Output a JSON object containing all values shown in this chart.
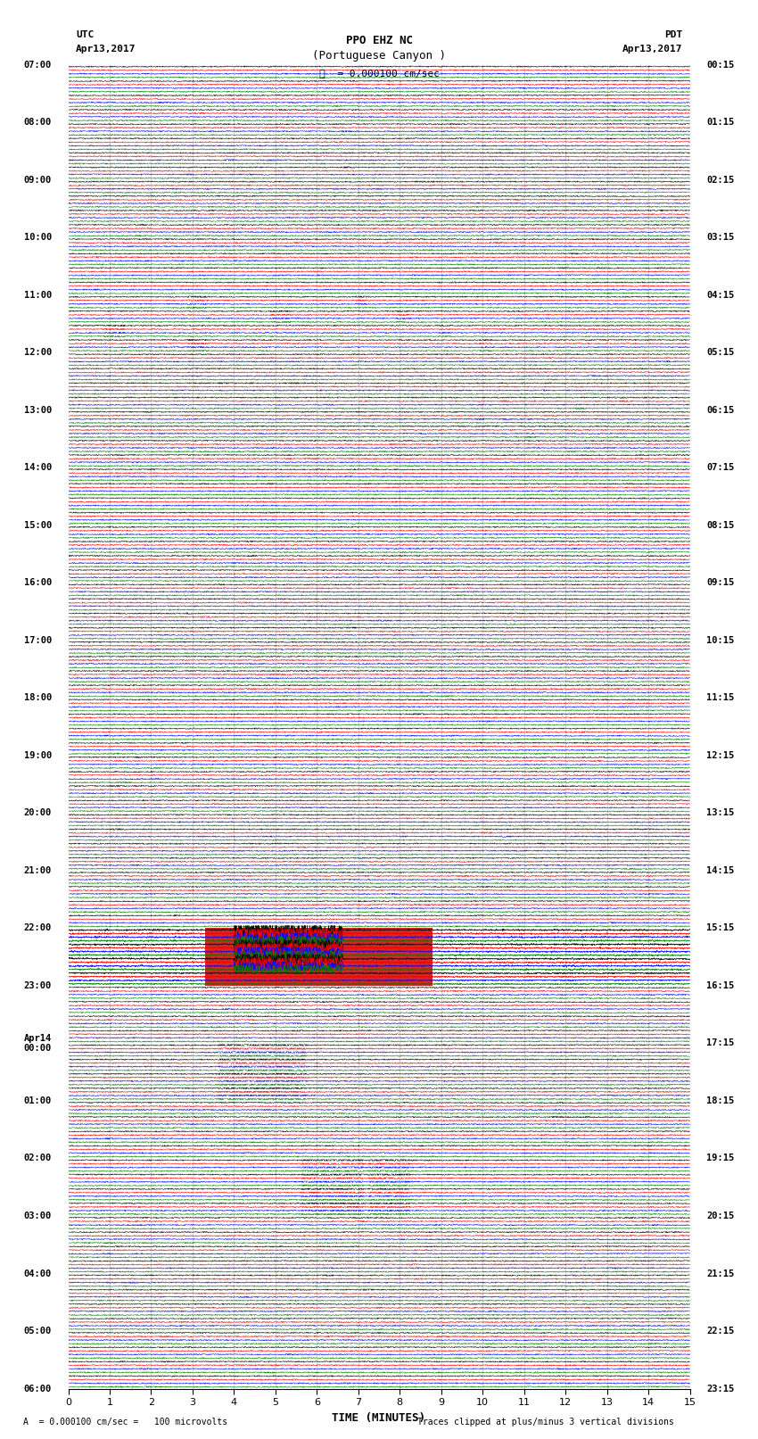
{
  "title_line1": "PPO EHZ NC",
  "title_line2": "(Portuguese Canyon )",
  "scale_label": "= 0.000100 cm/sec",
  "utc_label": "UTC",
  "pdt_label": "PDT",
  "date_left": "Apr13,2017",
  "date_right": "Apr13,2017",
  "xlabel": "TIME (MINUTES)",
  "footer_left": "A  = 0.000100 cm/sec =   100 microvolts",
  "footer_right": "Traces clipped at plus/minus 3 vertical divisions",
  "xlim": [
    0,
    15
  ],
  "xticks": [
    0,
    1,
    2,
    3,
    4,
    5,
    6,
    7,
    8,
    9,
    10,
    11,
    12,
    13,
    14,
    15
  ],
  "bg_color": "#ffffff",
  "trace_colors": [
    "#000000",
    "#ff0000",
    "#0000ff",
    "#008000"
  ],
  "fig_width": 8.5,
  "fig_height": 16.13,
  "num_rows": 92,
  "left_labels": [
    [
      "07:00",
      0
    ],
    [
      "08:00",
      4
    ],
    [
      "09:00",
      8
    ],
    [
      "10:00",
      12
    ],
    [
      "11:00",
      16
    ],
    [
      "12:00",
      20
    ],
    [
      "13:00",
      24
    ],
    [
      "14:00",
      28
    ],
    [
      "15:00",
      32
    ],
    [
      "16:00",
      36
    ],
    [
      "17:00",
      40
    ],
    [
      "18:00",
      44
    ],
    [
      "19:00",
      48
    ],
    [
      "20:00",
      52
    ],
    [
      "21:00",
      56
    ],
    [
      "22:00",
      60
    ],
    [
      "23:00",
      64
    ],
    [
      "Apr14\n00:00",
      68
    ],
    [
      "01:00",
      72
    ],
    [
      "02:00",
      76
    ],
    [
      "03:00",
      80
    ],
    [
      "04:00",
      84
    ],
    [
      "05:00",
      88
    ],
    [
      "06:00",
      92
    ]
  ],
  "right_labels": [
    [
      "00:15",
      0
    ],
    [
      "01:15",
      4
    ],
    [
      "02:15",
      8
    ],
    [
      "03:15",
      12
    ],
    [
      "04:15",
      16
    ],
    [
      "05:15",
      20
    ],
    [
      "06:15",
      24
    ],
    [
      "07:15",
      28
    ],
    [
      "08:15",
      32
    ],
    [
      "09:15",
      36
    ],
    [
      "10:15",
      40
    ],
    [
      "11:15",
      44
    ],
    [
      "12:15",
      48
    ],
    [
      "13:15",
      52
    ],
    [
      "14:15",
      56
    ],
    [
      "15:15",
      60
    ],
    [
      "16:15",
      64
    ],
    [
      "17:15",
      68
    ],
    [
      "18:15",
      72
    ],
    [
      "19:15",
      76
    ],
    [
      "20:15",
      80
    ],
    [
      "21:15",
      84
    ],
    [
      "22:15",
      88
    ],
    [
      "23:15",
      92
    ]
  ]
}
